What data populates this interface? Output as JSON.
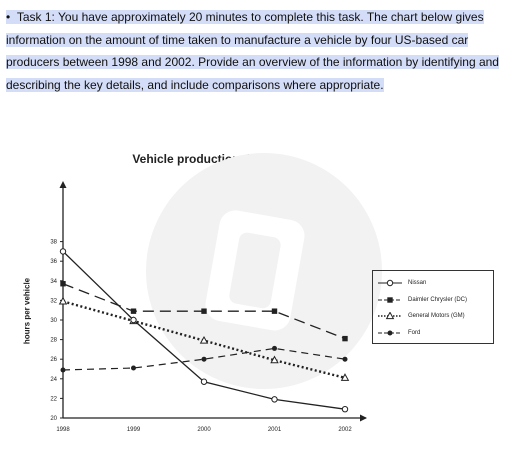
{
  "task": {
    "bullet": "•",
    "text": "Task 1: You have approximately 20 minutes to complete this task. The chart below gives information on the amount of time taken to manufacture a vehicle by four US-based car producers between 1998 and 2002. Provide an overview of the information by identifying and describing the key details, and include comparisons where appropriate."
  },
  "chart_data": {
    "type": "line",
    "title": "Vehicle production time",
    "xlabel": "",
    "ylabel": "hours per vehicle",
    "x": [
      "1998",
      "1999",
      "2000",
      "2001",
      "2002"
    ],
    "yticks": [
      20,
      22,
      24,
      26,
      28,
      30,
      32,
      34,
      36,
      38
    ],
    "ylim": [
      20,
      39
    ],
    "grid": false,
    "legend_position": "right",
    "series": [
      {
        "name": "Nissan",
        "values": [
          37,
          30,
          23.7,
          21.9,
          20.9
        ],
        "color": "#222222",
        "marker": "open-circle",
        "dash": "solid"
      },
      {
        "name": "Daimler Chrysler (DC)",
        "values": [
          33.7,
          30.9,
          30.9,
          30.9,
          28.1
        ],
        "color": "#222222",
        "marker": "filled-square",
        "dash": "long-dash"
      },
      {
        "name": "General Motors (GM)",
        "values": [
          31.9,
          29.9,
          27.9,
          25.9,
          24.1
        ],
        "color": "#222222",
        "marker": "open-triangle",
        "dash": "dotted"
      },
      {
        "name": "Ford",
        "values": [
          24.9,
          25.1,
          26,
          27.1,
          26
        ],
        "color": "#222222",
        "marker": "filled-circle",
        "dash": "short-dash"
      }
    ]
  }
}
